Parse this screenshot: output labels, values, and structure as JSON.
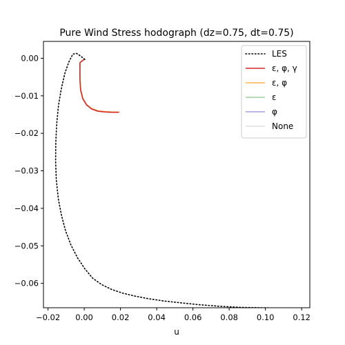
{
  "chart_data": {
    "type": "line",
    "title": "Pure Wind Stress hodograph (dz=0.75, dt=0.75)",
    "xlabel": "u",
    "ylabel": "v",
    "xlim": [
      -0.0225,
      0.1245
    ],
    "ylim": [
      -0.0665,
      0.0045
    ],
    "xticks": [
      -0.02,
      0.0,
      0.02,
      0.04,
      0.06,
      0.08,
      0.1,
      0.12
    ],
    "xtick_labels": [
      "−0.02",
      "0.00",
      "0.02",
      "0.04",
      "0.06",
      "0.08",
      "0.10",
      "0.12"
    ],
    "yticks": [
      0.0,
      -0.01,
      -0.02,
      -0.03,
      -0.04,
      -0.05,
      -0.06
    ],
    "ytick_labels": [
      "0.00",
      "−0.01",
      "−0.02",
      "−0.03",
      "−0.04",
      "−0.05",
      "−0.06"
    ],
    "grid": false,
    "legend_position": "top-right",
    "series": [
      {
        "name": "LES",
        "color": "#000000",
        "style": "dotted",
        "x": [
          0.0003,
          -0.002,
          -0.0042,
          -0.0063,
          -0.0085,
          -0.0107,
          -0.0126,
          -0.0142,
          -0.0152,
          -0.0157,
          -0.0158,
          -0.0154,
          -0.0143,
          -0.0126,
          -0.0103,
          -0.0073,
          -0.0037,
          0.0003,
          0.0046,
          0.0095,
          0.015,
          0.0212,
          0.028,
          0.0356,
          0.044,
          0.0535,
          0.0636,
          0.0745,
          0.0862,
          0.098,
          0.108,
          0.1185
        ],
        "y": [
          -0.0003,
          0.0006,
          0.0013,
          0.0011,
          -0.001,
          -0.004,
          -0.008,
          -0.0125,
          -0.0175,
          -0.0225,
          -0.0275,
          -0.0325,
          -0.0375,
          -0.0418,
          -0.046,
          -0.0498,
          -0.0532,
          -0.0561,
          -0.0586,
          -0.0603,
          -0.0616,
          -0.0626,
          -0.0634,
          -0.0641,
          -0.0647,
          -0.0652,
          -0.0657,
          -0.0661,
          -0.0664,
          -0.0665,
          -0.0666,
          -0.0666
        ]
      },
      {
        "name": "ε, φ, γ",
        "color": "#d62728",
        "style": "solid",
        "x": [
          0.0003,
          -0.0022,
          -0.0024,
          -0.0024,
          -0.002,
          -0.0008,
          0.0012,
          0.004,
          0.0075,
          0.0112,
          0.0152,
          0.0192
        ],
        "y": [
          -0.0002,
          -0.0011,
          -0.0013,
          -0.0055,
          -0.0085,
          -0.0108,
          -0.0124,
          -0.0135,
          -0.0141,
          -0.0143,
          -0.0144,
          -0.0144
        ]
      },
      {
        "name": "ε, φ",
        "color": "#ffb347",
        "style": "solid",
        "x": [
          0.0003,
          -0.0021,
          -0.0023,
          -0.0023,
          -0.0019,
          -0.0007,
          0.0013,
          0.0041,
          0.0076,
          0.0113,
          0.0153,
          0.0193
        ],
        "y": [
          -0.0001,
          -0.001,
          -0.0012,
          -0.0054,
          -0.0084,
          -0.0107,
          -0.0123,
          -0.0134,
          -0.014,
          -0.0142,
          -0.0143,
          -0.0143
        ]
      },
      {
        "name": "ε",
        "color": "#9dcf9d",
        "style": "solid",
        "x": [
          0.0003,
          -0.0022,
          -0.0024,
          -0.0024,
          -0.002,
          -0.0008,
          0.0012,
          0.004,
          0.0075,
          0.0112,
          0.0152,
          0.0192
        ],
        "y": [
          -0.0002,
          -0.0011,
          -0.0013,
          -0.0055,
          -0.0085,
          -0.0108,
          -0.0124,
          -0.0135,
          -0.0141,
          -0.0143,
          -0.0144,
          -0.0144
        ]
      },
      {
        "name": "φ",
        "color": "#a59ddf",
        "style": "solid",
        "x": [
          0.0003,
          -0.0021,
          -0.0023,
          -0.0023,
          -0.0019,
          -0.0007,
          0.0013,
          0.0041,
          0.0076,
          0.0113,
          0.0153,
          0.0193
        ],
        "y": [
          -0.0001,
          -0.001,
          -0.0012,
          -0.0054,
          -0.0084,
          -0.0107,
          -0.0123,
          -0.0134,
          -0.014,
          -0.0142,
          -0.0143,
          -0.0143
        ]
      },
      {
        "name": "None",
        "color": "#dddddd",
        "style": "solid",
        "x": [
          0.0003,
          -0.0022,
          -0.0024,
          -0.0024,
          -0.002,
          -0.0008,
          0.0012,
          0.004,
          0.0075,
          0.0112,
          0.0152,
          0.0192
        ],
        "y": [
          -0.0002,
          -0.0011,
          -0.0013,
          -0.0055,
          -0.0085,
          -0.0108,
          -0.0124,
          -0.0135,
          -0.0141,
          -0.0143,
          -0.0144,
          -0.0144
        ]
      }
    ]
  }
}
